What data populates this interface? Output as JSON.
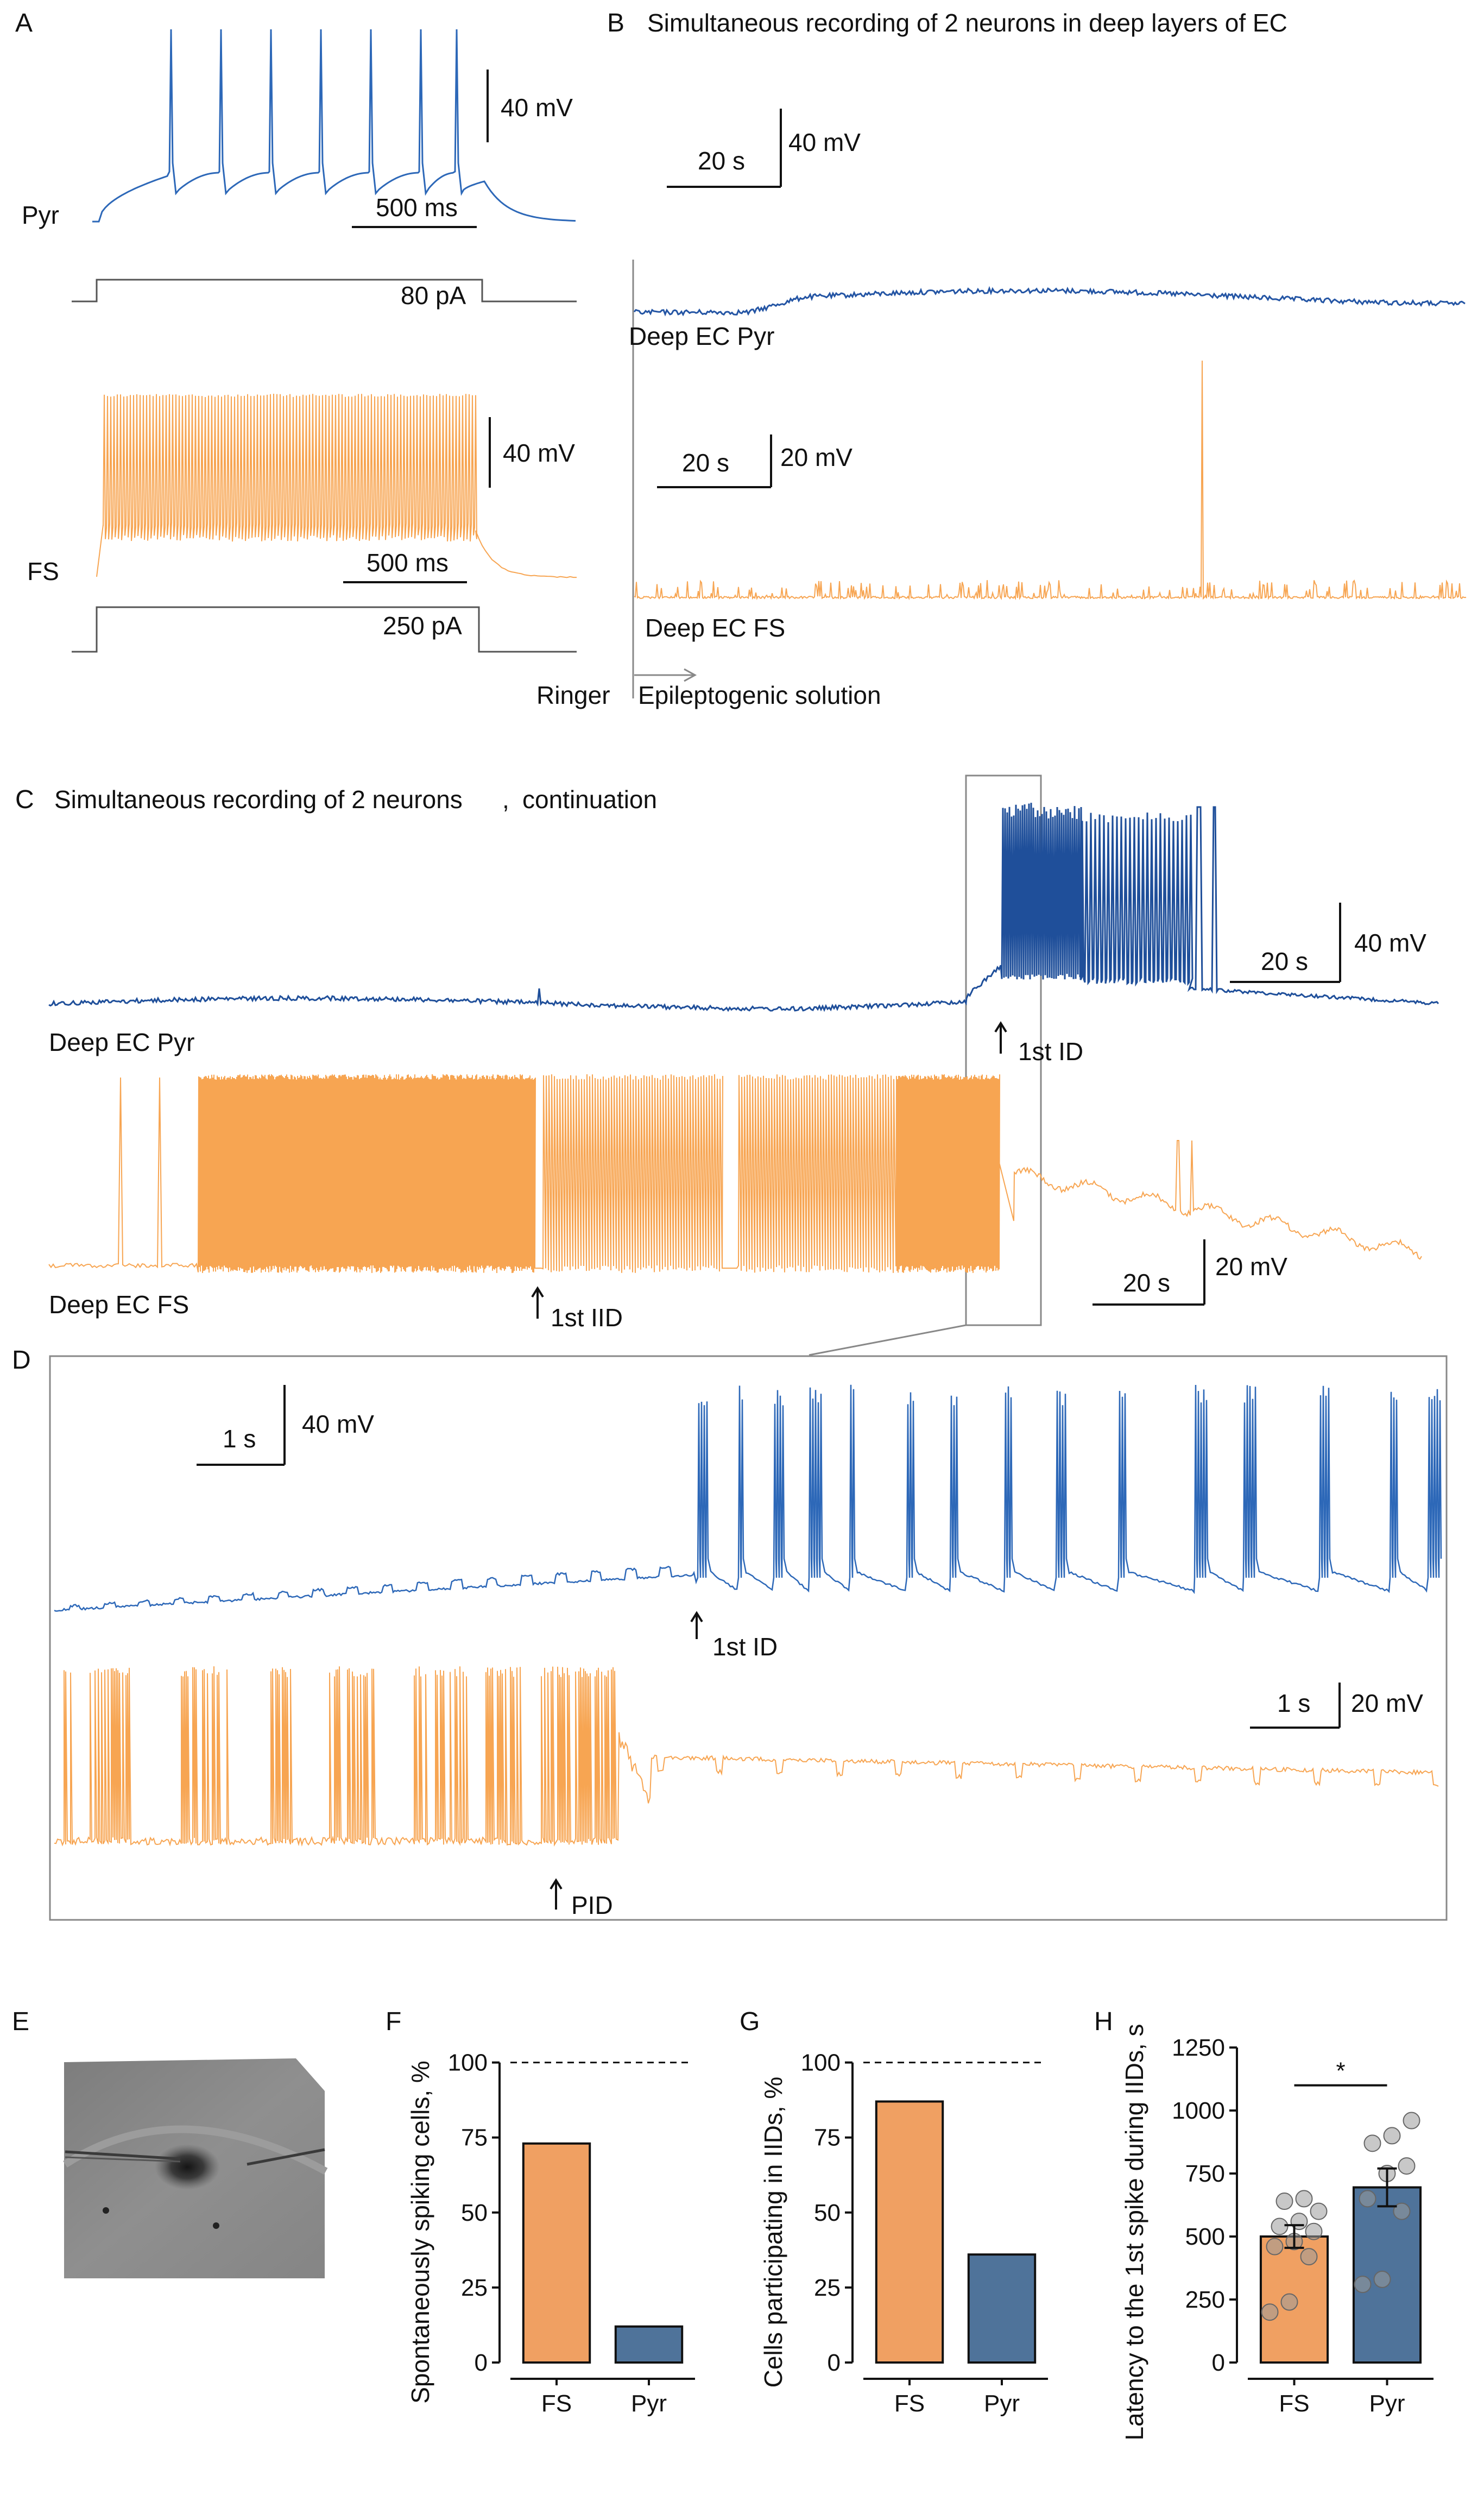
{
  "panels": {
    "A": {
      "label": "A",
      "pyr_label": "Pyr",
      "fs_label": "FS",
      "pyr_scale_mv": "40 mV",
      "pyr_scale_ms": "500 ms",
      "pyr_current": "80 pA",
      "fs_scale_mv": "40 mV",
      "fs_scale_ms": "500 ms",
      "fs_current": "250 pA"
    },
    "B": {
      "label": "B",
      "title": "Simultaneous recording of 2 neurons in deep layers of EC",
      "pyr_scale_s": "20 s",
      "pyr_scale_mv": "40 mV",
      "fs_scale_s": "20 s",
      "fs_scale_mv": "20 mV",
      "pyr_trace": "Deep EC Pyr",
      "fs_trace": "Deep EC FS",
      "ringer": "Ringer",
      "solution": "Epileptogenic solution"
    },
    "C": {
      "label": "C",
      "title": "Simultaneous recording of 2 neurons",
      "title_sep": ",",
      "title_tail": "continuation",
      "pyr_scale_s": "20 s",
      "pyr_scale_mv": "40 mV",
      "fs_scale_s": "20 s",
      "fs_scale_mv": "20 mV",
      "pyr_trace": "Deep EC Pyr",
      "fs_trace": "Deep EC FS",
      "first_id": "1st ID",
      "first_iid": "1st IID"
    },
    "D": {
      "label": "D",
      "pyr_scale_s": "1 s",
      "pyr_scale_mv": "40 mV",
      "fs_scale_s": "1 s",
      "fs_scale_mv": "20 mV",
      "first_id": "1st ID",
      "pid": "PID"
    },
    "E": {
      "label": "E"
    },
    "F": {
      "label": "F"
    },
    "G": {
      "label": "G"
    },
    "H": {
      "label": "H"
    }
  },
  "colors": {
    "pyr": "#2d68b8",
    "pyr_dark": "#1f4f9a",
    "fs": "#f7a552",
    "bar_fs": "#f0a062",
    "bar_pyr": "#4f739a"
  },
  "chart_data": [
    {
      "type": "bar",
      "panel": "F",
      "categories": [
        "FS",
        "Pyr"
      ],
      "values": [
        73,
        12
      ],
      "ylabel": "Spontaneously spiking cells, %",
      "yticks": [
        0,
        25,
        50,
        75,
        100
      ],
      "ylim": [
        0,
        105
      ],
      "reference_line": 100
    },
    {
      "type": "bar",
      "panel": "G",
      "categories": [
        "FS",
        "Pyr"
      ],
      "values": [
        87,
        36
      ],
      "ylabel": "Cells participating in IIDs, %",
      "yticks": [
        0,
        25,
        50,
        75,
        100
      ],
      "ylim": [
        0,
        105
      ],
      "reference_line": 100
    },
    {
      "type": "bar",
      "panel": "H",
      "categories": [
        "FS",
        "Pyr"
      ],
      "values": [
        500,
        695
      ],
      "errors": [
        45,
        75
      ],
      "points": [
        [
          200,
          240,
          420,
          460,
          480,
          520,
          540,
          560,
          600,
          640,
          650
        ],
        [
          310,
          330,
          600,
          650,
          750,
          780,
          870,
          900,
          960
        ]
      ],
      "ylabel": "Latency to the 1st spike during IIDs, s",
      "yticks": [
        0,
        250,
        500,
        750,
        1000,
        1250
      ],
      "ylim": [
        0,
        1250
      ],
      "significance": "*"
    }
  ]
}
